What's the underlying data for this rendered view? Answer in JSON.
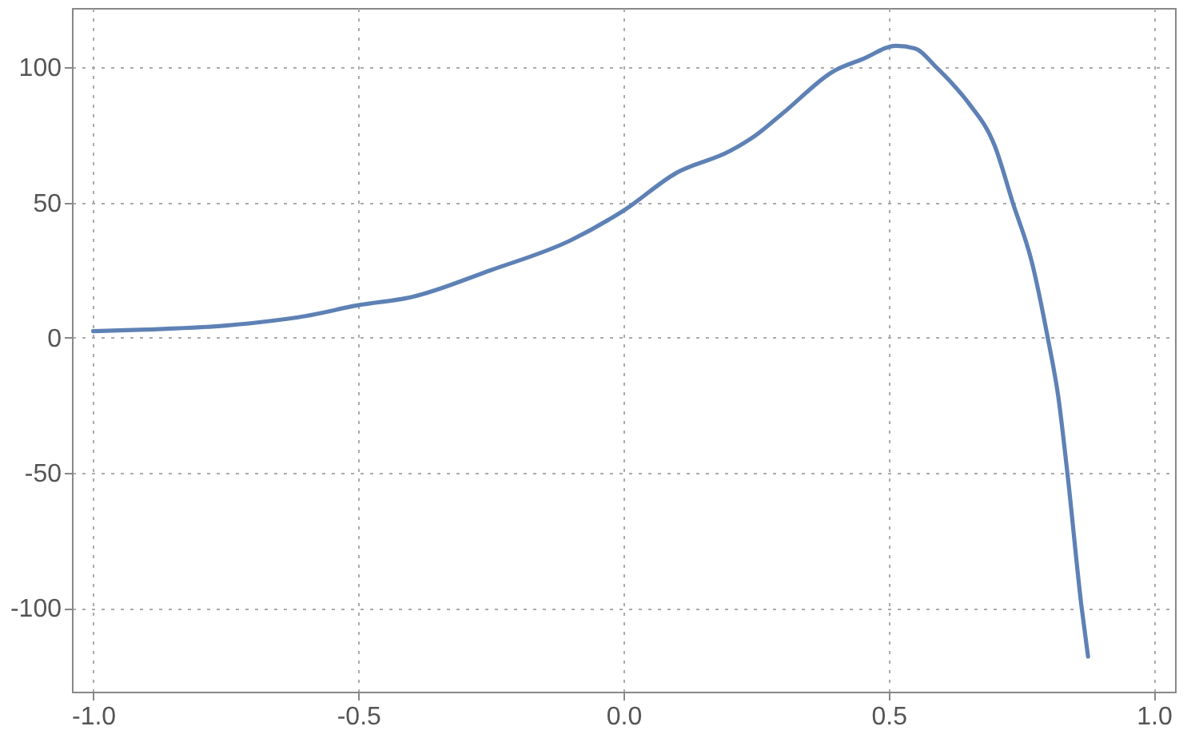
{
  "chart_data": {
    "type": "line",
    "x": [
      -1.0,
      -0.9,
      -0.75,
      -0.6,
      -0.5,
      -0.4,
      -0.25,
      -0.1,
      0.0,
      0.1,
      0.2,
      0.25,
      0.3,
      0.4,
      0.45,
      0.514,
      0.55,
      0.59,
      0.62,
      0.65,
      0.7,
      0.734,
      0.77,
      0.8,
      0.82,
      0.837,
      0.864,
      0.876
    ],
    "series": [
      {
        "color": "#5e81b5",
        "values": [
          2.4,
          3,
          4.5,
          8,
          12,
          15,
          25,
          36,
          47,
          61,
          69,
          75,
          83,
          99,
          103,
          108,
          107,
          100,
          94,
          87,
          71,
          50,
          28,
          0,
          -22,
          -50,
          -100,
          -118
        ]
      }
    ],
    "xlim": [
      -1.04,
      1.04
    ],
    "ylim": [
      -131,
      122
    ],
    "xticks": [
      {
        "value": -1.0,
        "label": "-1.0"
      },
      {
        "value": -0.5,
        "label": "-0.5"
      },
      {
        "value": 0.0,
        "label": "0.0"
      },
      {
        "value": 0.5,
        "label": "0.5"
      },
      {
        "value": 1.0,
        "label": "1.0"
      }
    ],
    "yticks": [
      -100,
      -50,
      0,
      50,
      100
    ],
    "grid": true,
    "line_style": "solid",
    "marker": "none"
  }
}
